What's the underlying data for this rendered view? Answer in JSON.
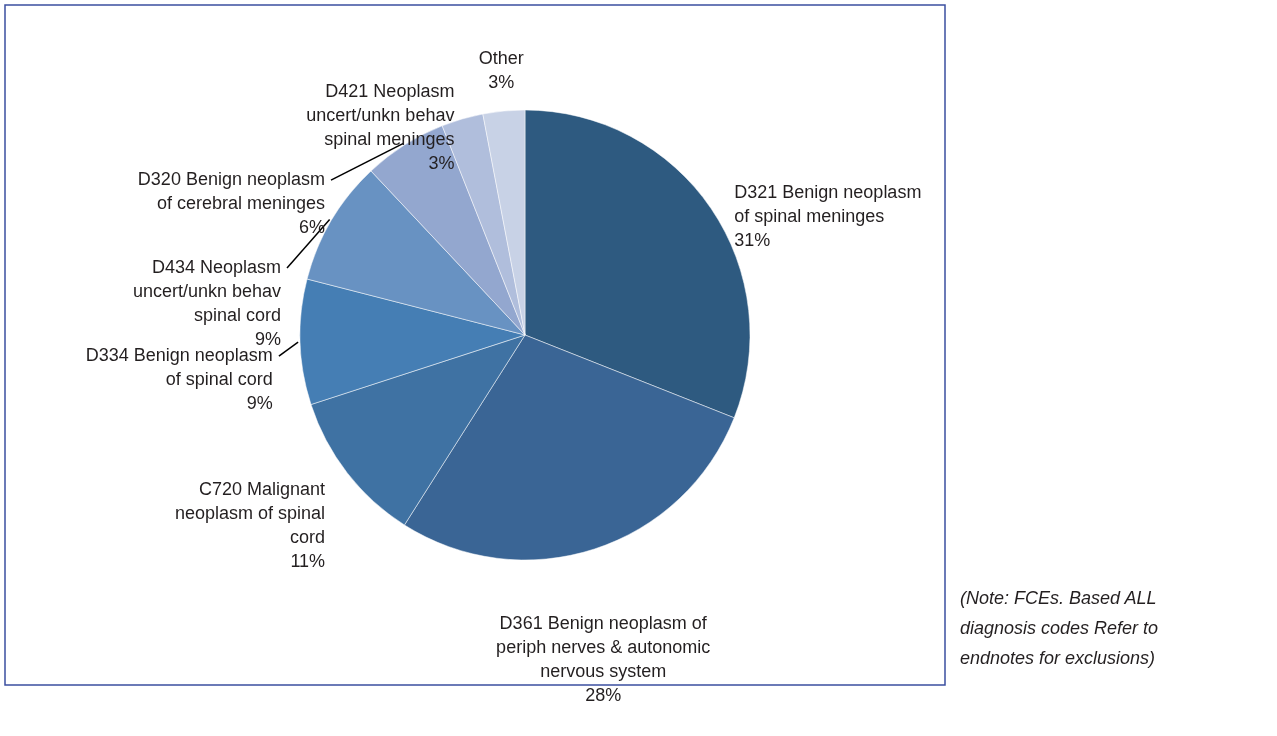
{
  "chart_data": {
    "type": "pie",
    "categories": [
      "D321 Benign neoplasm of spinal meninges",
      "D361 Benign neoplasm of periph nerves & autonomic nervous system",
      "C720 Malignant neoplasm of spinal cord",
      "D334 Benign neoplasm of spinal cord",
      "D434 Neoplasm uncert/unkn behav spinal cord",
      "D320 Benign neoplasm of cerebral meninges",
      "D421 Neoplasm uncert/unkn behav spinal meninges",
      "Other"
    ],
    "values": [
      31,
      28,
      11,
      9,
      9,
      6,
      3,
      3
    ],
    "value_labels": [
      "31%",
      "28%",
      "11%",
      "9%",
      "9%",
      "6%",
      "3%",
      "3%"
    ],
    "colors": [
      "#2e5a80",
      "#3a6595",
      "#3f72a3",
      "#457eb4",
      "#6892c2",
      "#93a7cf",
      "#b0bedc",
      "#c8d2e6"
    ],
    "legend": false,
    "annotations": [
      "(Note: FCEs. Based ALL diagnosis codes Refer to endnotes for exclusions)"
    ]
  }
}
